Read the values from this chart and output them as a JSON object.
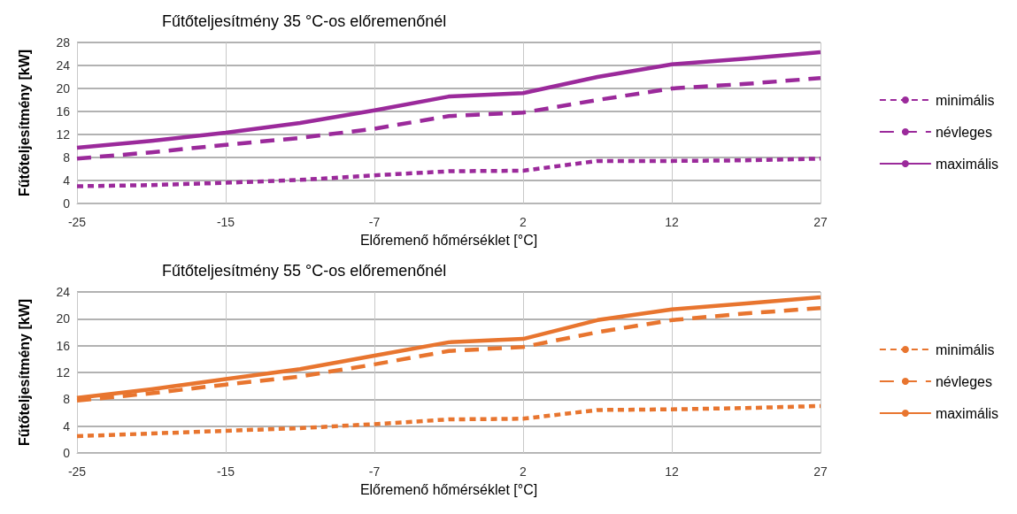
{
  "chart_data": [
    {
      "type": "line",
      "title": "Fűtőteljesítmény 35 °C-os előremenőnél",
      "xlabel": "Előremenő hőmérséklet [°C]",
      "ylabel": "Fűtőteljesítmény [kW]",
      "categories": [
        "-25",
        null,
        "-15",
        null,
        "-7",
        null,
        "2",
        null,
        "12",
        null,
        "27"
      ],
      "series": [
        {
          "name": "minimális",
          "color": "#9b2a9b",
          "line_style": "dotted",
          "values": [
            3.0,
            3.2,
            3.6,
            4.1,
            4.9,
            5.6,
            5.7,
            7.4,
            7.4,
            7.5,
            7.8
          ]
        },
        {
          "name": "névleges",
          "color": "#9b2a9b",
          "line_style": "dashed",
          "values": [
            7.8,
            8.9,
            10.2,
            11.4,
            13.0,
            15.2,
            15.8,
            18.0,
            20.0,
            20.8,
            21.8
          ]
        },
        {
          "name": "maximális",
          "color": "#9b2a9b",
          "line_style": "solid",
          "values": [
            9.7,
            10.9,
            12.3,
            14.0,
            16.2,
            18.6,
            19.2,
            22.0,
            24.2,
            25.2,
            26.3
          ]
        }
      ],
      "ylim": [
        0,
        28
      ],
      "yticks": [
        0,
        4,
        8,
        12,
        16,
        20,
        24,
        28
      ],
      "grid": true,
      "legend": "right",
      "marker": "none"
    },
    {
      "type": "line",
      "title": "Fűtőteljesítmény 55 °C-os előremenőnél",
      "xlabel": "Előremenő hőmérséklet [°C]",
      "ylabel": "Fűtőteljesítmény [kW]",
      "categories": [
        "-25",
        null,
        "-15",
        null,
        "-7",
        null,
        "2",
        null,
        "12",
        null,
        "27"
      ],
      "series": [
        {
          "name": "minimális",
          "color": "#e8752f",
          "line_style": "dotted",
          "values": [
            2.5,
            2.9,
            3.3,
            3.7,
            4.3,
            5.0,
            5.1,
            6.4,
            6.5,
            6.7,
            7.0
          ]
        },
        {
          "name": "névleges",
          "color": "#e8752f",
          "line_style": "dashed",
          "values": [
            7.8,
            8.9,
            10.2,
            11.4,
            13.2,
            15.2,
            15.8,
            18.0,
            19.8,
            20.8,
            21.6
          ]
        },
        {
          "name": "maximális",
          "color": "#e8752f",
          "line_style": "solid",
          "values": [
            8.2,
            9.5,
            11.0,
            12.5,
            14.5,
            16.5,
            17.0,
            19.8,
            21.4,
            22.3,
            23.2
          ]
        }
      ],
      "ylim": [
        0,
        24
      ],
      "yticks": [
        0,
        4,
        8,
        12,
        16,
        20,
        24
      ],
      "grid": true,
      "legend": "right",
      "marker": "none"
    }
  ]
}
